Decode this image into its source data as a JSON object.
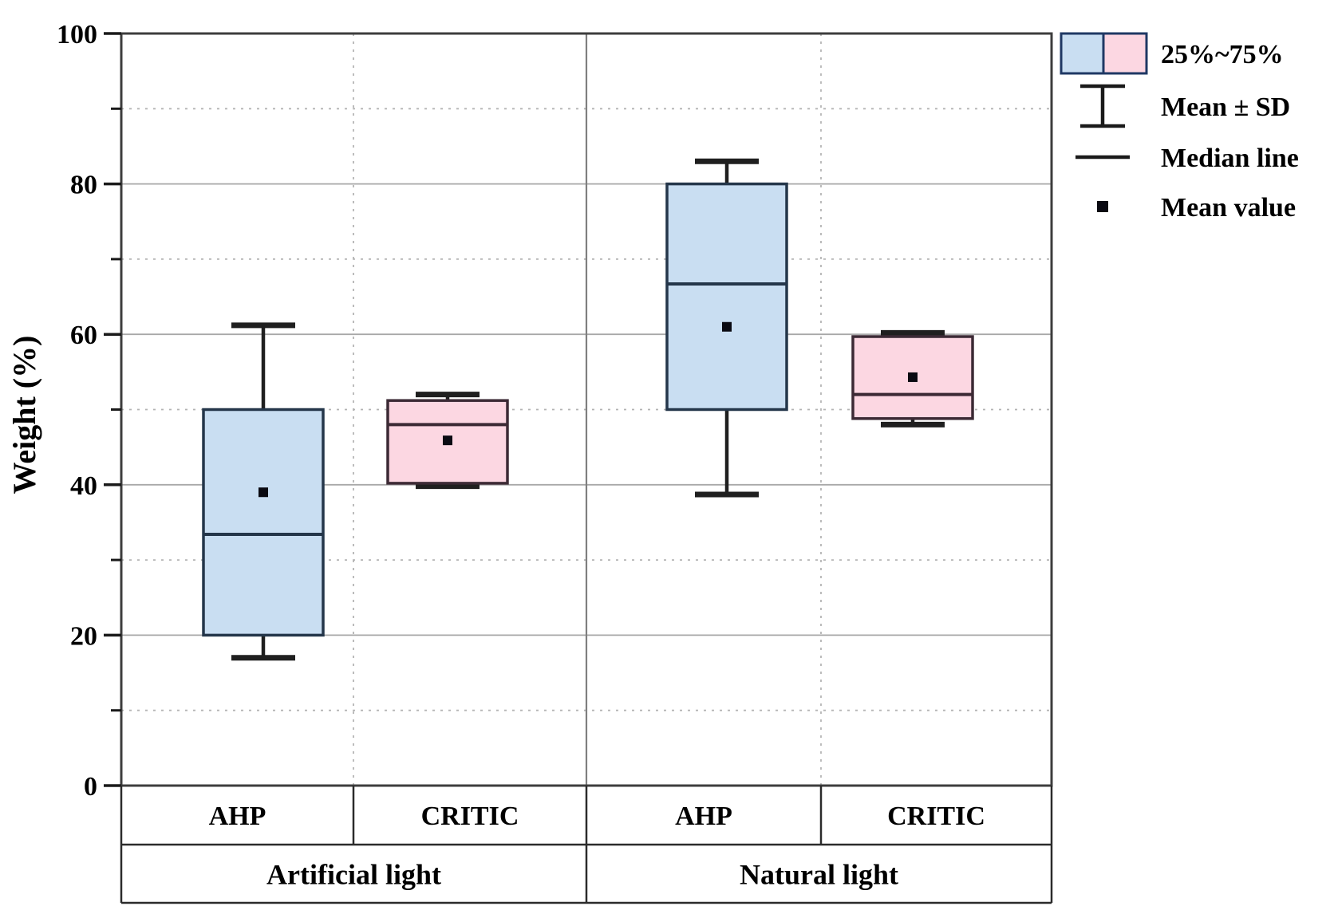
{
  "chart_data": {
    "type": "box",
    "title": "",
    "ylabel": "Weight (%)",
    "ylim": [
      0,
      100
    ],
    "yticks_major": [
      0,
      20,
      40,
      60,
      80,
      100
    ],
    "yticks_minor": [
      10,
      30,
      50,
      70,
      90
    ],
    "grid": "on",
    "legend_position": "top-right-outside",
    "groups": [
      {
        "label": "Artificial light",
        "boxes": [
          {
            "method": "AHP",
            "color_key": "blue",
            "whisker_low": 17.0,
            "q1": 20.0,
            "median": 33.4,
            "mean": 39.0,
            "q3": 50.0,
            "whisker_high": 61.2
          },
          {
            "method": "CRITIC",
            "color_key": "pink",
            "whisker_low": 39.8,
            "q1": 40.2,
            "median": 48.0,
            "mean": 45.9,
            "q3": 51.2,
            "whisker_high": 52.0
          }
        ]
      },
      {
        "label": "Natural light",
        "boxes": [
          {
            "method": "AHP",
            "color_key": "blue",
            "whisker_low": 38.7,
            "q1": 50.0,
            "median": 66.7,
            "mean": 61.0,
            "q3": 80.0,
            "whisker_high": 83.0
          },
          {
            "method": "CRITIC",
            "color_key": "pink",
            "whisker_low": 48.0,
            "q1": 48.8,
            "median": 52.0,
            "mean": 54.3,
            "q3": 59.7,
            "whisker_high": 60.2
          }
        ]
      }
    ],
    "legend": [
      {
        "type": "box-swatches",
        "label": "25%~75%"
      },
      {
        "type": "whisker",
        "label": "Mean ± SD"
      },
      {
        "type": "line",
        "label": "Median line"
      },
      {
        "type": "square",
        "label": "Mean value"
      }
    ],
    "colors": {
      "blue_fill": "#c9def2",
      "pink_fill": "#fcd7e2",
      "blue_border": "#24364a",
      "pink_border": "#3c2a35",
      "whisker": "#1f1f1f",
      "mean_marker": "#0a0a12",
      "grid_major": "#a8a8a8",
      "grid_minor": "#b4b4b4",
      "group_separator": "#7f7f7f",
      "frame": "#3d3d3d",
      "table_border": "#2b2b2b",
      "legend_border": "#1f3864",
      "text": "#000000"
    }
  }
}
